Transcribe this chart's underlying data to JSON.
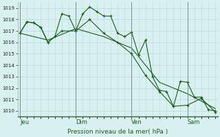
{
  "bg_color": "#cce8e8",
  "plot_bg_color": "#d8f0f0",
  "grid_color": "#b8d8d8",
  "line_color": "#1a5c1a",
  "ylabel_text": "Pression niveau de la mer( hPa )",
  "ylim": [
    1009.5,
    1019.5
  ],
  "yticks": [
    1010,
    1011,
    1012,
    1013,
    1014,
    1015,
    1016,
    1017,
    1018,
    1019
  ],
  "day_labels": [
    "Jeu",
    "Dim",
    "Ven",
    "Sam"
  ],
  "day_positions": [
    0,
    72,
    144,
    216
  ],
  "xlim": [
    -3,
    255
  ],
  "series1_x": [
    0,
    9,
    18,
    27,
    36,
    45,
    54,
    63,
    72,
    81,
    90,
    99,
    108,
    117,
    126,
    135,
    144,
    153,
    162,
    171,
    180,
    189,
    198,
    207,
    216,
    225,
    234,
    243,
    252
  ],
  "series1_y": [
    1016.8,
    1017.8,
    1017.7,
    1017.3,
    1016.0,
    1016.5,
    1018.5,
    1018.3,
    1017.0,
    1018.5,
    1019.1,
    1018.7,
    1018.3,
    1018.3,
    1016.8,
    1016.5,
    1016.9,
    1014.9,
    1016.2,
    1013.0,
    1011.8,
    1011.7,
    1010.4,
    1012.6,
    1012.5,
    1011.2,
    1011.2,
    1010.1,
    1010.0
  ],
  "series2_x": [
    0,
    9,
    18,
    27,
    36,
    54,
    72,
    90,
    108,
    126,
    144,
    162,
    180,
    198,
    216,
    234,
    252
  ],
  "series2_y": [
    1016.8,
    1017.8,
    1017.7,
    1017.3,
    1016.0,
    1017.0,
    1017.0,
    1018.0,
    1016.8,
    1016.0,
    1015.0,
    1013.1,
    1011.7,
    1010.4,
    1010.5,
    1011.1,
    1009.9
  ],
  "series3_x": [
    0,
    36,
    72,
    108,
    144,
    180,
    216,
    252
  ],
  "series3_y": [
    1016.8,
    1016.2,
    1017.2,
    1016.5,
    1015.5,
    1012.5,
    1011.5,
    1010.2
  ]
}
